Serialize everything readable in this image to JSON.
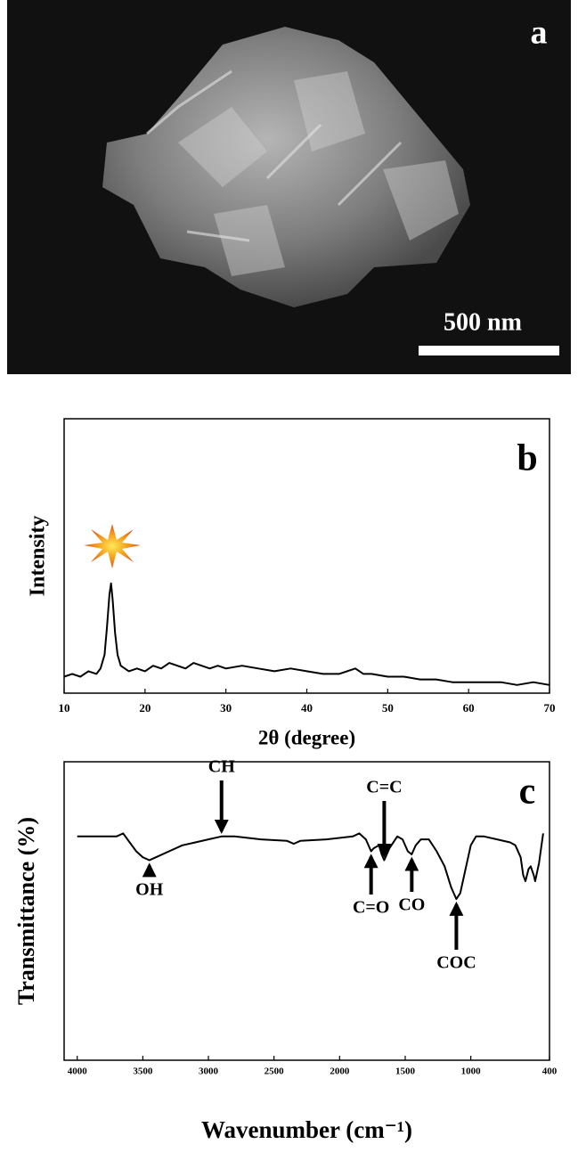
{
  "image_panel": {
    "label": "a",
    "scale_bar": "500 nm"
  },
  "chart_data": [
    {
      "type": "line",
      "label": "b",
      "xlabel": "2θ (degree)",
      "ylabel": "Intensity",
      "color": "#000000",
      "xlim": [
        10,
        70
      ],
      "ylim": [
        0,
        100
      ],
      "xticks": [
        10,
        20,
        30,
        40,
        50,
        60,
        70
      ],
      "x": [
        10,
        11,
        12,
        13,
        14,
        14.5,
        15,
        15.3,
        15.6,
        15.8,
        16,
        16.3,
        16.6,
        17,
        17.5,
        18,
        19,
        20,
        21,
        22,
        23,
        24,
        25,
        26,
        27,
        28,
        29,
        30,
        32,
        34,
        36,
        38,
        40,
        42,
        44,
        46,
        47,
        48,
        50,
        52,
        54,
        56,
        58,
        60,
        62,
        64,
        66,
        68,
        70
      ],
      "values": [
        6,
        7,
        6,
        8,
        7,
        9,
        14,
        24,
        36,
        40,
        34,
        22,
        14,
        10,
        9,
        8,
        9,
        8,
        10,
        9,
        11,
        10,
        9,
        11,
        10,
        9,
        10,
        9,
        10,
        9,
        8,
        9,
        8,
        7,
        7,
        9,
        7,
        7,
        6,
        6,
        5,
        5,
        4,
        4,
        4,
        4,
        3,
        4,
        3
      ]
    },
    {
      "type": "line",
      "label": "c",
      "xlabel": "Wavenumber (cm⁻¹)",
      "ylabel": "Transmittance (%)",
      "color": "#000000",
      "xlim": [
        4100,
        400
      ],
      "ylim": [
        0,
        100
      ],
      "xticks": [
        4000,
        3500,
        3000,
        2500,
        2000,
        1500,
        1000,
        400
      ],
      "x": [
        4000,
        3800,
        3700,
        3650,
        3600,
        3550,
        3500,
        3450,
        3400,
        3300,
        3200,
        3100,
        3000,
        2900,
        2800,
        2600,
        2400,
        2350,
        2300,
        2100,
        1900,
        1850,
        1800,
        1760,
        1740,
        1700,
        1680,
        1660,
        1620,
        1560,
        1520,
        1480,
        1450,
        1420,
        1380,
        1320,
        1260,
        1200,
        1150,
        1110,
        1080,
        1040,
        1000,
        960,
        900,
        800,
        700,
        660,
        620,
        600,
        583,
        560,
        543,
        520,
        509,
        480,
        448
      ],
      "values": [
        75,
        75,
        75,
        76,
        73,
        70,
        68,
        67,
        68,
        70,
        72,
        73,
        74,
        75,
        75,
        74,
        73.5,
        72.5,
        73.5,
        74,
        75,
        76,
        74,
        70,
        71,
        72,
        69,
        67,
        71,
        75,
        74,
        70,
        69,
        72,
        74,
        74,
        70,
        65,
        58,
        54,
        56,
        64,
        72,
        75,
        75,
        74,
        73,
        72,
        68,
        62,
        60,
        64,
        65,
        62,
        60,
        66,
        76
      ],
      "annotations": [
        {
          "text": "OH",
          "x": 3450
        },
        {
          "text": "CH",
          "x": 2900
        },
        {
          "text": "C=C",
          "x": 1660
        },
        {
          "text": "C=O",
          "x": 1760
        },
        {
          "text": "CO",
          "x": 1450
        },
        {
          "text": "COC",
          "x": 1110
        }
      ]
    }
  ]
}
